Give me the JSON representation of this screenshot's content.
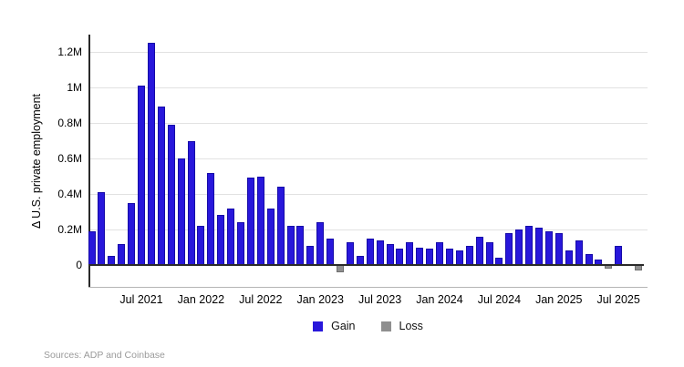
{
  "chart_data": {
    "type": "bar",
    "title": "",
    "ylabel": "Δ U.S. private employment",
    "xlabel": "",
    "values_in": "millions",
    "x": [
      "Feb 2021",
      "Mar 2021",
      "Apr 2021",
      "May 2021",
      "Jun 2021",
      "Jul 2021",
      "Aug 2021",
      "Sep 2021",
      "Oct 2021",
      "Nov 2021",
      "Dec 2021",
      "Jan 2022",
      "Feb 2022",
      "Mar 2022",
      "Apr 2022",
      "May 2022",
      "Jun 2022",
      "Jul 2022",
      "Aug 2022",
      "Sep 2022",
      "Oct 2022",
      "Nov 2022",
      "Dec 2022",
      "Jan 2023",
      "Feb 2023",
      "Mar 2023",
      "Apr 2023",
      "May 2023",
      "Jun 2023",
      "Jul 2023",
      "Aug 2023",
      "Sep 2023",
      "Oct 2023",
      "Nov 2023",
      "Dec 2023",
      "Jan 2024",
      "Feb 2024",
      "Mar 2024",
      "Apr 2024",
      "May 2024",
      "Jun 2024",
      "Jul 2024",
      "Aug 2024",
      "Sep 2024",
      "Oct 2024",
      "Nov 2024",
      "Dec 2024",
      "Jan 2025",
      "Feb 2025",
      "Mar 2025",
      "Apr 2025",
      "May 2025",
      "Jun 2025",
      "Jul 2025",
      "Aug 2025",
      "Sep 2025"
    ],
    "values": [
      0.19,
      0.41,
      0.05,
      0.12,
      0.35,
      1.01,
      1.25,
      0.89,
      0.79,
      0.6,
      0.7,
      0.22,
      0.52,
      0.28,
      0.32,
      0.24,
      0.49,
      0.5,
      0.32,
      0.44,
      0.22,
      0.22,
      0.11,
      0.24,
      0.15,
      -0.04,
      0.13,
      0.05,
      0.15,
      0.14,
      0.12,
      0.09,
      0.13,
      0.1,
      0.09,
      0.13,
      0.09,
      0.08,
      0.11,
      0.16,
      0.13,
      0.04,
      0.18,
      0.2,
      0.22,
      0.21,
      0.19,
      0.18,
      0.08,
      0.14,
      0.06,
      0.03,
      -0.02,
      0.11,
      0.0,
      -0.03
    ],
    "y_ticks": [
      {
        "label": "0",
        "value": 0
      },
      {
        "label": "0.2M",
        "value": 0.2
      },
      {
        "label": "0.4M",
        "value": 0.4
      },
      {
        "label": "0.6M",
        "value": 0.6
      },
      {
        "label": "0.8M",
        "value": 0.8
      },
      {
        "label": "1M",
        "value": 1.0
      },
      {
        "label": "1.2M",
        "value": 1.2
      }
    ],
    "x_ticks": [
      {
        "label": "Jul 2021",
        "index": 5
      },
      {
        "label": "Jan 2022",
        "index": 11
      },
      {
        "label": "Jul 2022",
        "index": 17
      },
      {
        "label": "Jan 2023",
        "index": 23
      },
      {
        "label": "Jul 2023",
        "index": 29
      },
      {
        "label": "Jan 2024",
        "index": 35
      },
      {
        "label": "Jul 2024",
        "index": 41
      },
      {
        "label": "Jan 2025",
        "index": 47
      },
      {
        "label": "Jul 2025",
        "index": 53
      }
    ],
    "ylim": [
      -0.08,
      1.3
    ],
    "grid": "horizontal",
    "legend_position": "bottom-center",
    "legend": [
      {
        "label": "Gain",
        "color": "#2817db"
      },
      {
        "label": "Loss",
        "color": "#8f8f8f"
      }
    ],
    "source": "Sources: ADP and Coinbase"
  }
}
